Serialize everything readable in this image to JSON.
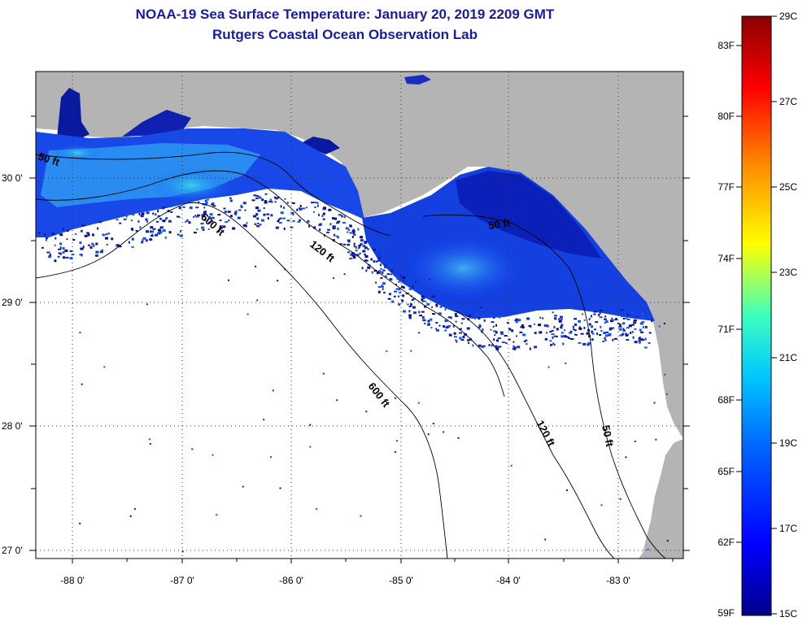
{
  "title": "NOAA-19 Sea Surface Temperature:  January 20, 2019 2209 GMT",
  "subtitle": "Rutgers Coastal Ocean Observation Lab",
  "map": {
    "lon_labels": [
      "-88 0'",
      "-87 0'",
      "-86 0'",
      "-85 0'",
      "-84 0'",
      "-83 0'"
    ],
    "lat_labels": [
      "30 0'",
      "29 0'",
      "28 0'",
      "27 0'"
    ],
    "contour_labels": [
      "50 ft",
      "600 ft",
      "120 ft",
      "50 ft",
      "600 ft",
      "120 ft",
      "50 ft"
    ],
    "colors": {
      "land": "#b4b4b4",
      "ocean_nodata": "#ffffff",
      "grid": "#333333"
    }
  },
  "colorbar": {
    "fahrenheit_labels": [
      "83F",
      "80F",
      "77F",
      "74F",
      "71F",
      "68F",
      "65F",
      "62F",
      "59F"
    ],
    "celsius_labels": [
      "29C",
      "27C",
      "25C",
      "23C",
      "21C",
      "19C",
      "17C",
      "15C"
    ],
    "min_c": 15,
    "max_c": 29,
    "colors": [
      "#00008b",
      "#0000ff",
      "#0064ff",
      "#00c8ff",
      "#3cffbe",
      "#ffff00",
      "#ff8c00",
      "#ff0000",
      "#8b0000"
    ]
  }
}
